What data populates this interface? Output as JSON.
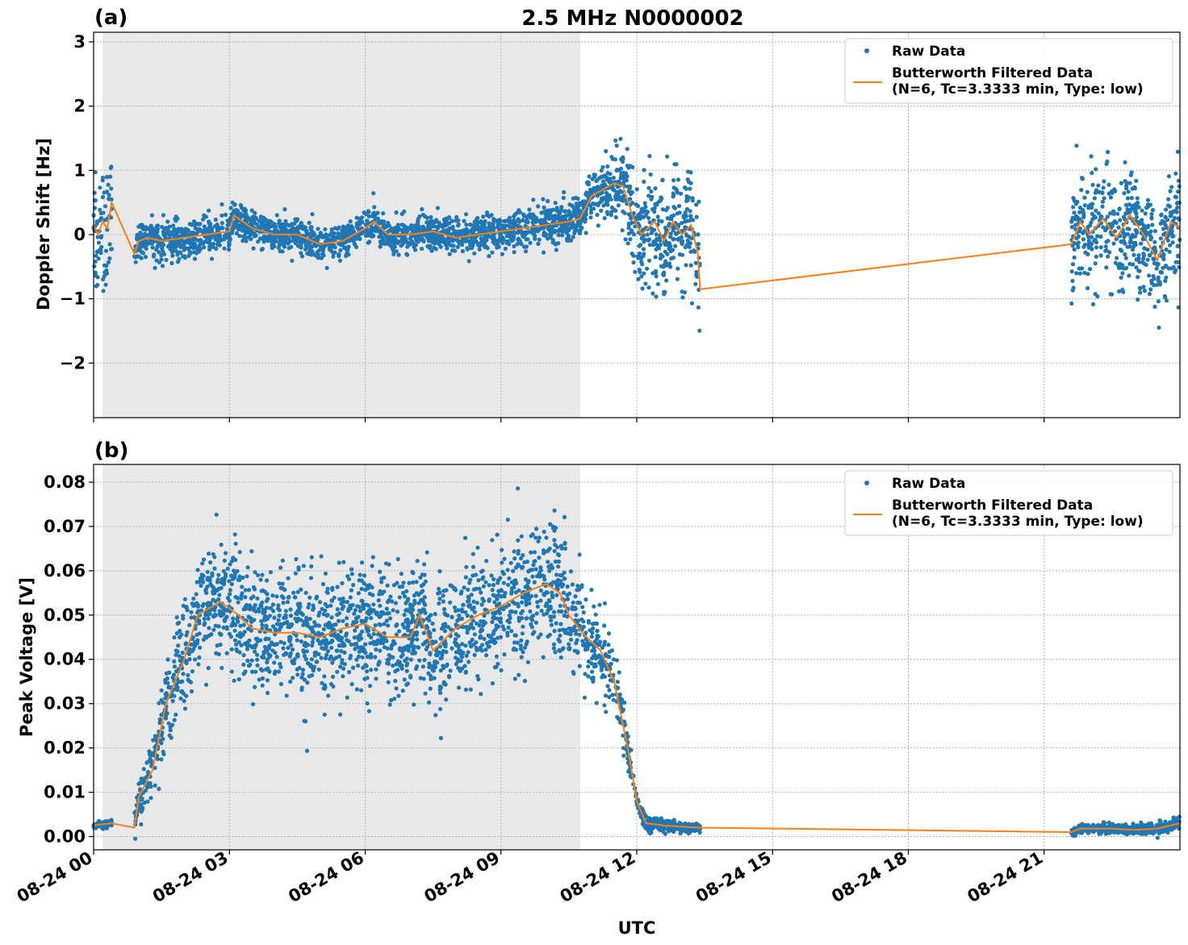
{
  "figure": {
    "title": "2.5 MHz N0000002",
    "xlabel": "UTC",
    "xticks": [
      "08-24 00",
      "08-24 03",
      "08-24 06",
      "08-24 09",
      "08-24 12",
      "08-24 15",
      "08-24 18",
      "08-24 21"
    ],
    "colors": {
      "raw": "#1f77b4",
      "filtered": "#ff7f0e",
      "shade": "#e8e8e8",
      "grid": "#b0b0b0"
    }
  },
  "legend": {
    "raw": "Raw Data",
    "filtered_line1": "Butterworth Filtered Data",
    "filtered_line2": "(N=6, Tc=3.3333 min, Type: low)"
  },
  "chart_data": [
    {
      "panel_label": "(a)",
      "type": "scatter",
      "ylabel": "Doppler Shift [Hz]",
      "x_unit": "hours UTC on 08-24",
      "xlim": [
        0,
        24
      ],
      "ylim": [
        -2.85,
        3.15
      ],
      "yticks": [
        -2,
        -1,
        0,
        1,
        2,
        3
      ],
      "ytick_labels": [
        "−2",
        "−1",
        "0",
        "1",
        "2",
        "3"
      ],
      "shaded_x": [
        0.2,
        10.75
      ],
      "grid": true,
      "legend_position": "top-right",
      "series": [
        {
          "name": "Raw Data",
          "kind": "scatter",
          "segments": [
            [
              0,
              0.4
            ],
            [
              0.9,
              13.4
            ],
            [
              21.6,
              24
            ]
          ],
          "spread": [
            [
              0,
              1.0
            ],
            [
              0.4,
              1.0
            ],
            [
              0.9,
              0.35
            ],
            [
              3,
              0.3
            ],
            [
              6,
              0.3
            ],
            [
              9,
              0.3
            ],
            [
              10.7,
              0.35
            ],
            [
              11.2,
              0.45
            ],
            [
              11.7,
              0.8
            ],
            [
              12.2,
              1.0
            ],
            [
              13.4,
              1.1
            ],
            [
              21.6,
              1.0
            ],
            [
              24,
              1.0
            ]
          ]
        },
        {
          "name": "Butterworth Filtered Data",
          "kind": "line",
          "points": [
            [
              0,
              0.15
            ],
            [
              0.1,
              0.0
            ],
            [
              0.2,
              0.2
            ],
            [
              0.3,
              0.1
            ],
            [
              0.4,
              0.5
            ],
            [
              0.9,
              -0.3
            ],
            [
              1.0,
              -0.1
            ],
            [
              1.2,
              -0.05
            ],
            [
              1.5,
              -0.1
            ],
            [
              2.0,
              -0.05
            ],
            [
              2.5,
              0.0
            ],
            [
              3.0,
              0.05
            ],
            [
              3.1,
              0.3
            ],
            [
              3.5,
              0.1
            ],
            [
              4.0,
              0.0
            ],
            [
              4.5,
              0.0
            ],
            [
              5.0,
              -0.15
            ],
            [
              5.5,
              -0.1
            ],
            [
              6.0,
              0.1
            ],
            [
              6.2,
              0.2
            ],
            [
              6.5,
              0.0
            ],
            [
              7.0,
              0.0
            ],
            [
              7.5,
              0.05
            ],
            [
              8.0,
              -0.05
            ],
            [
              8.5,
              0.0
            ],
            [
              9.0,
              0.05
            ],
            [
              9.5,
              0.1
            ],
            [
              10.0,
              0.15
            ],
            [
              10.5,
              0.2
            ],
            [
              10.75,
              0.25
            ],
            [
              11.0,
              0.6
            ],
            [
              11.5,
              0.8
            ],
            [
              11.7,
              0.75
            ],
            [
              11.9,
              0.3
            ],
            [
              12.1,
              0.0
            ],
            [
              12.4,
              0.2
            ],
            [
              12.6,
              -0.1
            ],
            [
              12.8,
              0.2
            ],
            [
              13.0,
              0.0
            ],
            [
              13.2,
              0.15
            ],
            [
              13.35,
              -0.3
            ],
            [
              13.4,
              -0.85
            ],
            [
              21.6,
              -0.15
            ],
            [
              21.8,
              0.2
            ],
            [
              22.0,
              0.0
            ],
            [
              22.3,
              0.25
            ],
            [
              22.6,
              -0.05
            ],
            [
              22.9,
              0.3
            ],
            [
              23.2,
              0.0
            ],
            [
              23.5,
              -0.4
            ],
            [
              23.8,
              0.2
            ],
            [
              24.0,
              0.1
            ]
          ]
        }
      ]
    },
    {
      "panel_label": "(b)",
      "type": "scatter",
      "ylabel": "Peak Voltage [V]",
      "x_unit": "hours UTC on 08-24",
      "xlim": [
        0,
        24
      ],
      "ylim": [
        -0.003,
        0.084
      ],
      "yticks": [
        0.0,
        0.01,
        0.02,
        0.03,
        0.04,
        0.05,
        0.06,
        0.07,
        0.08
      ],
      "ytick_labels": [
        "0.00",
        "0.01",
        "0.02",
        "0.03",
        "0.04",
        "0.05",
        "0.06",
        "0.07",
        "0.08"
      ],
      "shaded_x": [
        0.2,
        10.75
      ],
      "grid": true,
      "legend_position": "top-right",
      "series": [
        {
          "name": "Raw Data",
          "kind": "scatter",
          "segments": [
            [
              0,
              0.4
            ],
            [
              0.9,
              13.4
            ],
            [
              21.6,
              24
            ]
          ],
          "spread": [
            [
              0,
              0.001
            ],
            [
              0.4,
              0.001
            ],
            [
              0.9,
              0.004
            ],
            [
              1.5,
              0.009
            ],
            [
              2.0,
              0.014
            ],
            [
              3.0,
              0.015
            ],
            [
              6.0,
              0.015
            ],
            [
              9.0,
              0.016
            ],
            [
              10.5,
              0.016
            ],
            [
              11.0,
              0.012
            ],
            [
              11.5,
              0.008
            ],
            [
              12.0,
              0.002
            ],
            [
              13.4,
              0.001
            ],
            [
              21.6,
              0.001
            ],
            [
              24,
              0.0015
            ]
          ]
        },
        {
          "name": "Butterworth Filtered Data",
          "kind": "line",
          "points": [
            [
              0,
              0.0025
            ],
            [
              0.4,
              0.003
            ],
            [
              0.9,
              0.002
            ],
            [
              1.0,
              0.009
            ],
            [
              1.3,
              0.015
            ],
            [
              1.6,
              0.03
            ],
            [
              2.0,
              0.04
            ],
            [
              2.3,
              0.05
            ],
            [
              2.8,
              0.053
            ],
            [
              3.2,
              0.05
            ],
            [
              3.5,
              0.047
            ],
            [
              4.0,
              0.046
            ],
            [
              4.5,
              0.046
            ],
            [
              5.0,
              0.045
            ],
            [
              5.5,
              0.047
            ],
            [
              6.0,
              0.048
            ],
            [
              6.5,
              0.045
            ],
            [
              7.0,
              0.045
            ],
            [
              7.2,
              0.05
            ],
            [
              7.5,
              0.042
            ],
            [
              8.0,
              0.047
            ],
            [
              8.5,
              0.05
            ],
            [
              9.0,
              0.052
            ],
            [
              9.5,
              0.055
            ],
            [
              10.0,
              0.057
            ],
            [
              10.3,
              0.055
            ],
            [
              10.5,
              0.05
            ],
            [
              10.8,
              0.046
            ],
            [
              11.2,
              0.042
            ],
            [
              11.5,
              0.035
            ],
            [
              11.8,
              0.02
            ],
            [
              12.0,
              0.008
            ],
            [
              12.2,
              0.003
            ],
            [
              12.6,
              0.0025
            ],
            [
              13.0,
              0.0022
            ],
            [
              13.4,
              0.002
            ],
            [
              21.6,
              0.001
            ],
            [
              21.8,
              0.0018
            ],
            [
              22.5,
              0.0018
            ],
            [
              23.0,
              0.0015
            ],
            [
              23.5,
              0.0018
            ],
            [
              24.0,
              0.003
            ]
          ]
        }
      ]
    }
  ]
}
